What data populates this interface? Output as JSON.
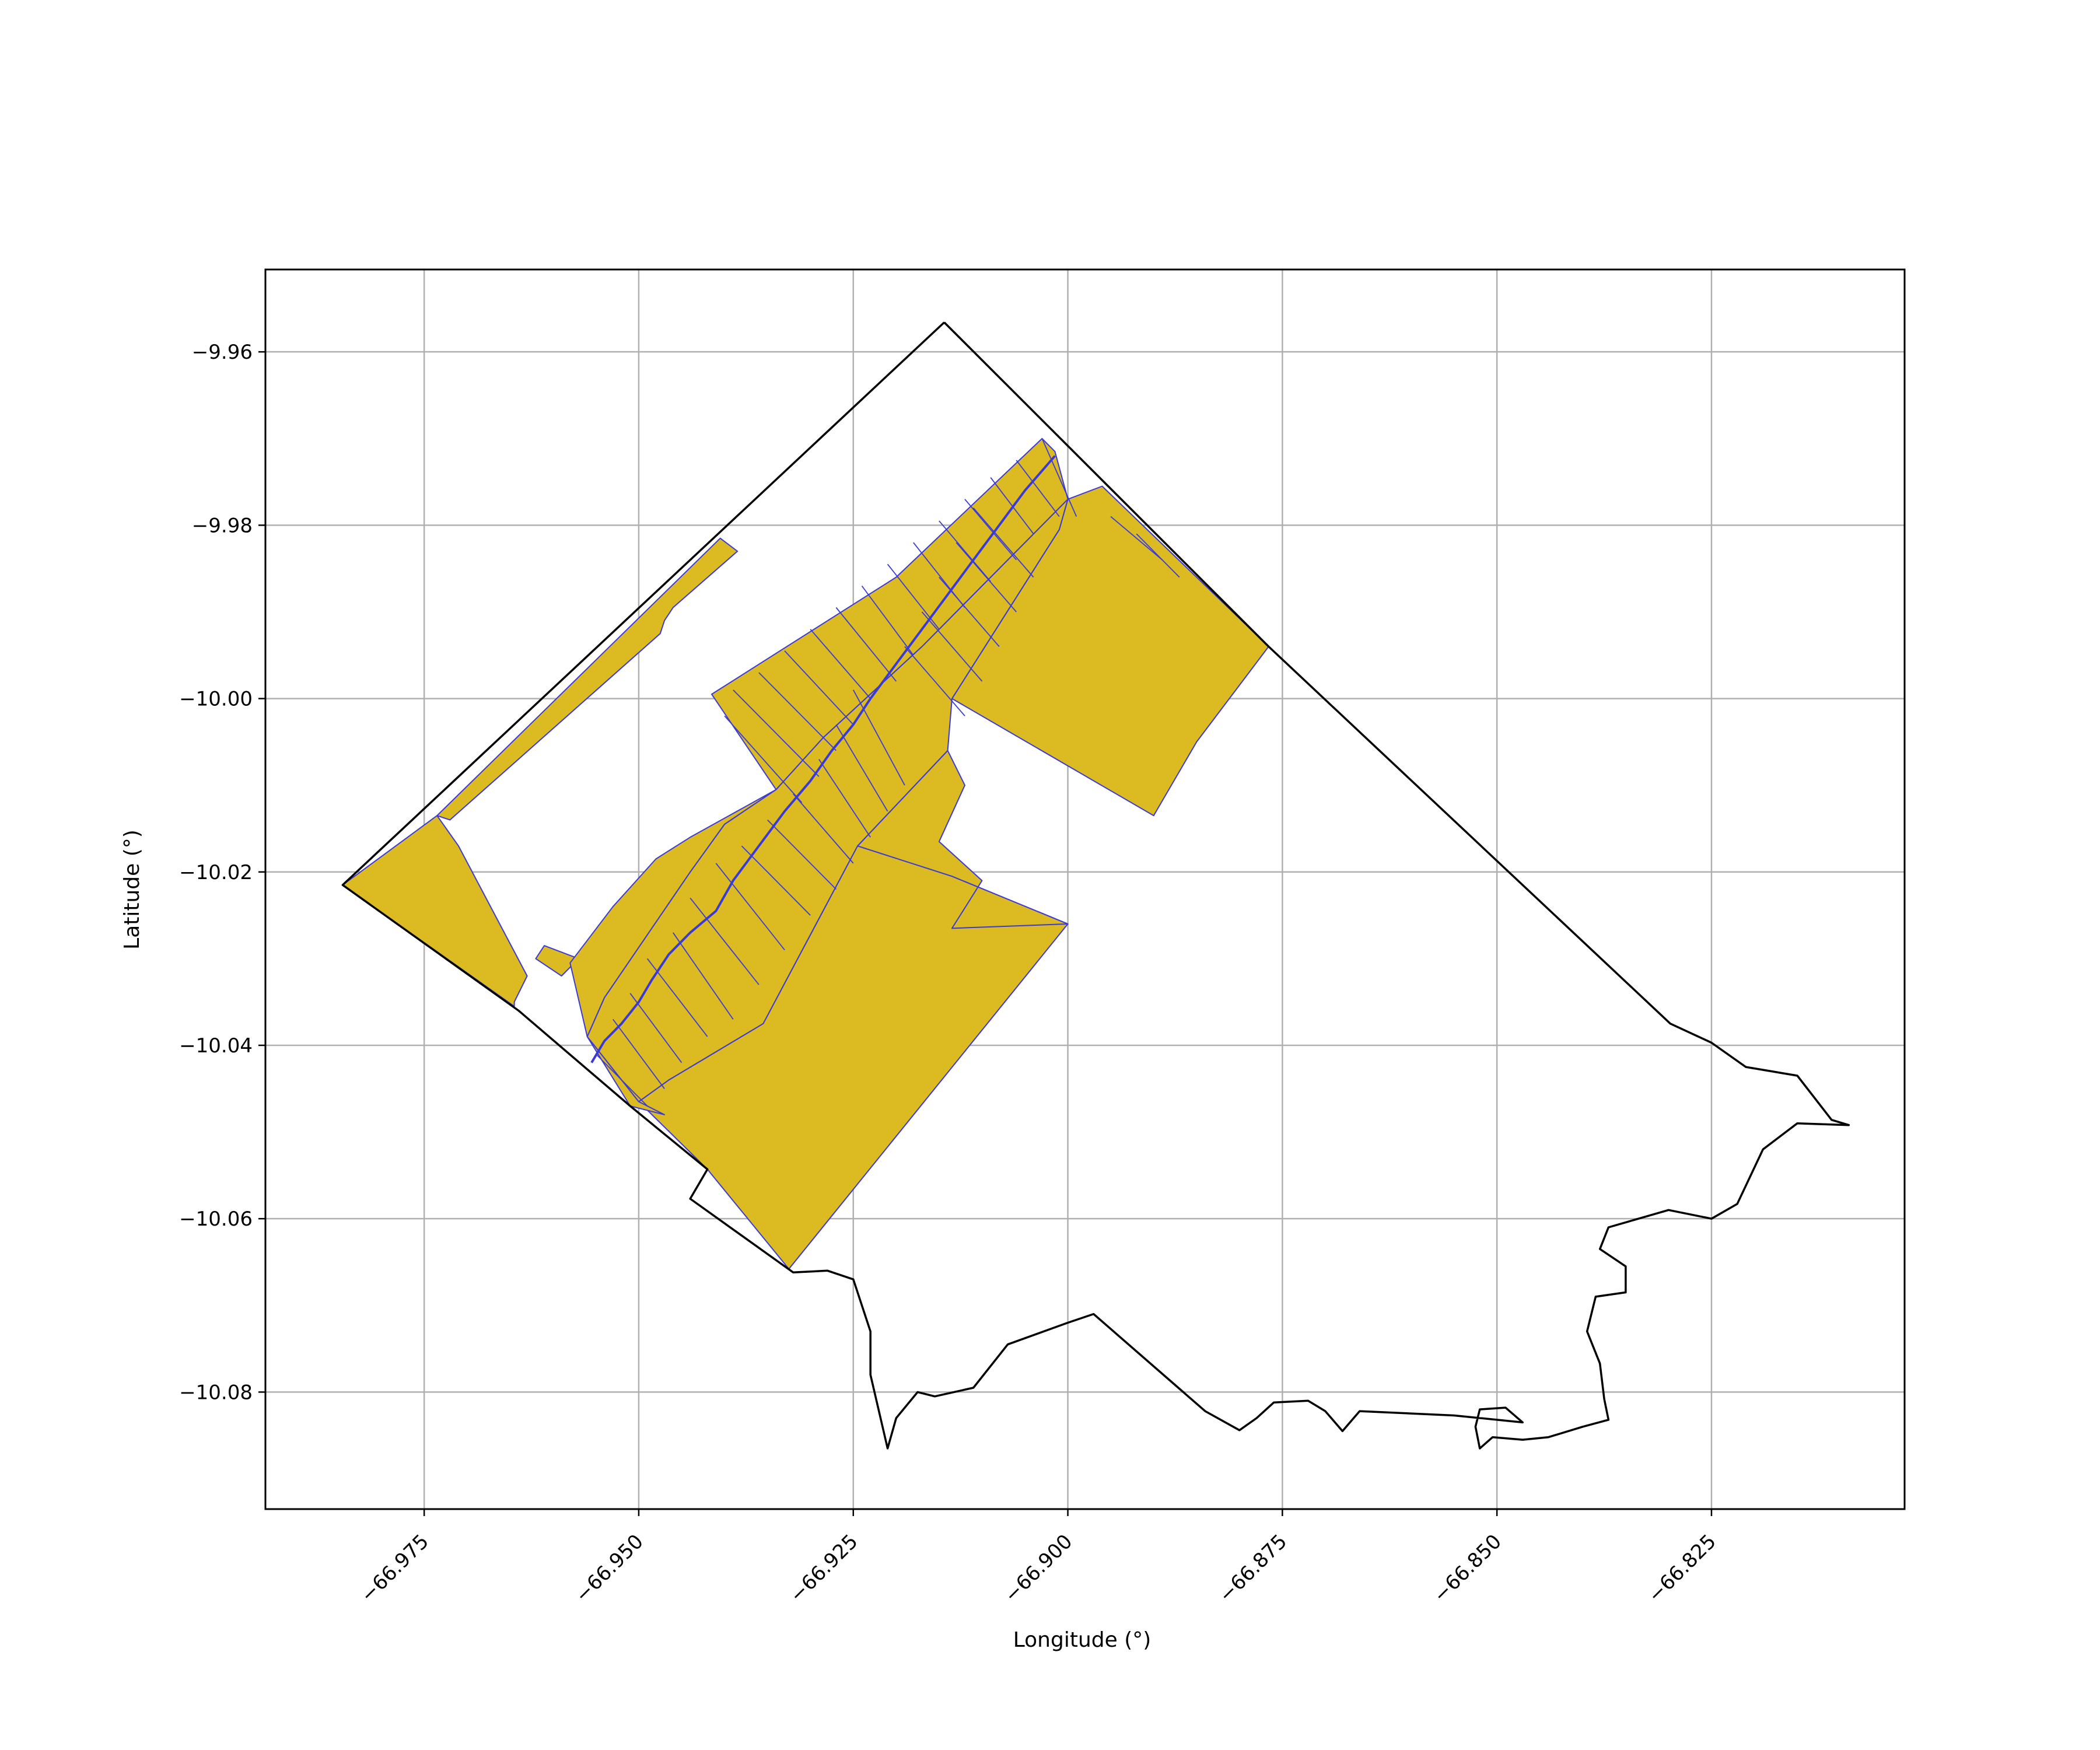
{
  "chart_data": {
    "type": "map",
    "xlabel": "Longitude (°)",
    "ylabel": "Latitude (°)",
    "xlim": [
      -66.9935,
      -66.8025
    ],
    "ylim": [
      -10.0935,
      -9.9505
    ],
    "grid": true,
    "xticks": [
      {
        "value": -66.975,
        "label": "−66.975"
      },
      {
        "value": -66.95,
        "label": "−66.950"
      },
      {
        "value": -66.925,
        "label": "−66.925"
      },
      {
        "value": -66.9,
        "label": "−66.900"
      },
      {
        "value": -66.875,
        "label": "−66.875"
      },
      {
        "value": -66.85,
        "label": "−66.850"
      },
      {
        "value": -66.825,
        "label": "−66.825"
      }
    ],
    "yticks": [
      {
        "value": -9.96,
        "label": "−9.96"
      },
      {
        "value": -9.98,
        "label": "−9.98"
      },
      {
        "value": -10.0,
        "label": "−10.00"
      },
      {
        "value": -10.02,
        "label": "−10.02"
      },
      {
        "value": -10.04,
        "label": "−10.04"
      },
      {
        "value": -10.06,
        "label": "−10.06"
      },
      {
        "value": -10.08,
        "label": "−10.08"
      }
    ],
    "colors": {
      "boundary": "#000000",
      "parcel_fill": "#dbbb21",
      "parcel_edge": "#3a3ad6",
      "grid": "#b0b0b0"
    },
    "boundary": [
      [
        -66.9144,
        -9.9566
      ],
      [
        -66.8766,
        -9.994
      ],
      [
        -66.8298,
        -10.0375
      ],
      [
        -66.825,
        -10.0397
      ],
      [
        -66.821,
        -10.0425
      ],
      [
        -66.815,
        -10.0435
      ],
      [
        -66.811,
        -10.0486
      ],
      [
        -66.809,
        -10.0492
      ],
      [
        -66.815,
        -10.049
      ],
      [
        -66.819,
        -10.052
      ],
      [
        -66.822,
        -10.0583
      ],
      [
        -66.825,
        -10.06
      ],
      [
        -66.83,
        -10.059
      ],
      [
        -66.837,
        -10.061
      ],
      [
        -66.838,
        -10.0635
      ],
      [
        -66.835,
        -10.0655
      ],
      [
        -66.835,
        -10.0685
      ],
      [
        -66.8385,
        -10.069
      ],
      [
        -66.8395,
        -10.073
      ],
      [
        -66.838,
        -10.0767
      ],
      [
        -66.8375,
        -10.0808
      ],
      [
        -66.837,
        -10.0832
      ],
      [
        -66.84,
        -10.084
      ],
      [
        -66.844,
        -10.0852
      ],
      [
        -66.847,
        -10.0855
      ],
      [
        -66.8505,
        -10.0852
      ],
      [
        -66.852,
        -10.0865
      ],
      [
        -66.8525,
        -10.084
      ],
      [
        -66.852,
        -10.082
      ],
      [
        -66.849,
        -10.0818
      ],
      [
        -66.847,
        -10.0835
      ],
      [
        -66.855,
        -10.0827
      ],
      [
        -66.866,
        -10.0822
      ],
      [
        -66.868,
        -10.0845
      ],
      [
        -66.87,
        -10.0822
      ],
      [
        -66.872,
        -10.081
      ],
      [
        -66.876,
        -10.0812
      ],
      [
        -66.878,
        -10.083
      ],
      [
        -66.88,
        -10.0844
      ],
      [
        -66.884,
        -10.0822
      ],
      [
        -66.897,
        -10.071
      ],
      [
        -66.9,
        -10.072
      ],
      [
        -66.907,
        -10.0745
      ],
      [
        -66.911,
        -10.0795
      ],
      [
        -66.9155,
        -10.0805
      ],
      [
        -66.9175,
        -10.08
      ],
      [
        -66.92,
        -10.083
      ],
      [
        -66.921,
        -10.0865
      ],
      [
        -66.923,
        -10.078
      ],
      [
        -66.923,
        -10.073
      ],
      [
        -66.925,
        -10.067
      ],
      [
        -66.928,
        -10.066
      ],
      [
        -66.932,
        -10.0662
      ],
      [
        -66.944,
        -10.0577
      ],
      [
        -66.942,
        -10.0543
      ],
      [
        -66.951,
        -10.047
      ],
      [
        -66.964,
        -10.036
      ],
      [
        -66.9845,
        -10.0215
      ],
      [
        -66.9144,
        -9.9566
      ]
    ],
    "parcels": [
      [
        [
          -66.9845,
          -10.0215
        ],
        [
          -66.9735,
          -10.0135
        ],
        [
          -66.971,
          -10.017
        ],
        [
          -66.963,
          -10.032
        ],
        [
          -66.9645,
          -10.035
        ],
        [
          -66.9645,
          -10.0355
        ]
      ],
      [
        [
          -66.9735,
          -10.0135
        ],
        [
          -66.9405,
          -9.9815
        ],
        [
          -66.9385,
          -9.983
        ],
        [
          -66.946,
          -9.9895
        ],
        [
          -66.947,
          -9.991
        ],
        [
          -66.9475,
          -9.9925
        ],
        [
          -66.972,
          -10.014
        ]
      ],
      [
        [
          -66.962,
          -10.03
        ],
        [
          -66.959,
          -10.032
        ],
        [
          -66.957,
          -10.03
        ],
        [
          -66.961,
          -10.0285
        ]
      ],
      [
        [
          -66.942,
          -10.0543
        ],
        [
          -66.9325,
          -10.0658
        ],
        [
          -66.9,
          -10.026
        ],
        [
          -66.9135,
          -10.0205
        ],
        [
          -66.9245,
          -10.017
        ],
        [
          -66.9355,
          -10.0375
        ],
        [
          -66.9465,
          -10.044
        ],
        [
          -66.95,
          -10.0465
        ]
      ],
      [
        [
          -66.9245,
          -10.017
        ],
        [
          -66.914,
          -10.006
        ],
        [
          -66.912,
          -10.01
        ],
        [
          -66.915,
          -10.0165
        ],
        [
          -66.91,
          -10.021
        ],
        [
          -66.9135,
          -10.0265
        ],
        [
          -66.9,
          -10.026
        ],
        [
          -66.9135,
          -10.0205
        ]
      ],
      [
        [
          -66.896,
          -9.9755
        ],
        [
          -66.8766,
          -9.994
        ],
        [
          -66.885,
          -10.005
        ],
        [
          -66.89,
          -10.0135
        ],
        [
          -66.9135,
          -10.0
        ],
        [
          -66.901,
          -9.9805
        ],
        [
          -66.9,
          -9.977
        ]
      ],
      [
        [
          -66.9,
          -9.977
        ],
        [
          -66.901,
          -9.9805
        ],
        [
          -66.9135,
          -10.0
        ],
        [
          -66.914,
          -10.006
        ],
        [
          -66.9245,
          -10.017
        ],
        [
          -66.9355,
          -10.0375
        ],
        [
          -66.9465,
          -10.044
        ],
        [
          -66.95,
          -10.0465
        ],
        [
          -66.956,
          -10.039
        ],
        [
          -66.954,
          -10.0345
        ],
        [
          -66.944,
          -10.02
        ],
        [
          -66.94,
          -10.0145
        ],
        [
          -66.934,
          -10.0105
        ],
        [
          -66.9285,
          -10.0045
        ],
        [
          -66.917,
          -9.994
        ],
        [
          -66.9,
          -9.977
        ]
      ],
      [
        [
          -66.9015,
          -9.9715
        ],
        [
          -66.9,
          -9.977
        ],
        [
          -66.917,
          -9.994
        ],
        [
          -66.9285,
          -10.0045
        ],
        [
          -66.934,
          -10.0105
        ],
        [
          -66.94,
          -10.0145
        ],
        [
          -66.944,
          -10.02
        ],
        [
          -66.954,
          -10.0345
        ],
        [
          -66.956,
          -10.039
        ],
        [
          -66.95,
          -10.0465
        ],
        [
          -66.947,
          -10.048
        ],
        [
          -66.951,
          -10.047
        ],
        [
          -66.956,
          -10.039
        ],
        [
          -66.958,
          -10.0305
        ],
        [
          -66.953,
          -10.024
        ],
        [
          -66.948,
          -10.0185
        ],
        [
          -66.944,
          -10.016
        ],
        [
          -66.934,
          -10.0105
        ],
        [
          -66.9415,
          -9.9995
        ],
        [
          -66.92,
          -9.986
        ],
        [
          -66.903,
          -9.97
        ]
      ]
    ],
    "strip_lines": [
      [
        [
          -66.903,
          -9.97
        ],
        [
          -66.899,
          -9.979
        ]
      ],
      [
        [
          -66.906,
          -9.9725
        ],
        [
          -66.901,
          -9.979
        ]
      ],
      [
        [
          -66.909,
          -9.9745
        ],
        [
          -66.904,
          -9.981
        ]
      ],
      [
        [
          -66.912,
          -9.977
        ],
        [
          -66.906,
          -9.984
        ]
      ],
      [
        [
          -66.915,
          -9.9795
        ],
        [
          -66.909,
          -9.9865
        ]
      ],
      [
        [
          -66.918,
          -9.982
        ],
        [
          -66.912,
          -9.9895
        ]
      ],
      [
        [
          -66.921,
          -9.9845
        ],
        [
          -66.915,
          -9.992
        ]
      ],
      [
        [
          -66.924,
          -9.987
        ],
        [
          -66.918,
          -9.995
        ]
      ],
      [
        [
          -66.927,
          -9.9895
        ],
        [
          -66.92,
          -9.998
        ]
      ],
      [
        [
          -66.93,
          -9.992
        ],
        [
          -66.923,
          -10.0
        ]
      ],
      [
        [
          -66.933,
          -9.9945
        ],
        [
          -66.925,
          -10.003
        ]
      ],
      [
        [
          -66.936,
          -9.997
        ],
        [
          -66.927,
          -10.006
        ]
      ],
      [
        [
          -66.939,
          -9.999
        ],
        [
          -66.929,
          -10.009
        ]
      ],
      [
        [
          -66.94,
          -10.002
        ],
        [
          -66.931,
          -10.012
        ]
      ],
      [
        [
          -66.925,
          -9.999
        ],
        [
          -66.919,
          -10.01
        ]
      ],
      [
        [
          -66.927,
          -10.003
        ],
        [
          -66.921,
          -10.013
        ]
      ],
      [
        [
          -66.929,
          -10.007
        ],
        [
          -66.923,
          -10.016
        ]
      ],
      [
        [
          -66.932,
          -10.011
        ],
        [
          -66.925,
          -10.019
        ]
      ],
      [
        [
          -66.935,
          -10.014
        ],
        [
          -66.927,
          -10.022
        ]
      ],
      [
        [
          -66.938,
          -10.017
        ],
        [
          -66.93,
          -10.025
        ]
      ],
      [
        [
          -66.941,
          -10.019
        ],
        [
          -66.933,
          -10.029
        ]
      ],
      [
        [
          -66.944,
          -10.023
        ],
        [
          -66.936,
          -10.033
        ]
      ],
      [
        [
          -66.946,
          -10.027
        ],
        [
          -66.939,
          -10.037
        ]
      ],
      [
        [
          -66.949,
          -10.03
        ],
        [
          -66.942,
          -10.039
        ]
      ],
      [
        [
          -66.951,
          -10.034
        ],
        [
          -66.945,
          -10.042
        ]
      ],
      [
        [
          -66.953,
          -10.037
        ],
        [
          -66.947,
          -10.045
        ]
      ],
      [
        [
          -66.955,
          -10.041
        ],
        [
          -66.949,
          -10.047
        ]
      ],
      [
        [
          -66.911,
          -9.978
        ],
        [
          -66.904,
          -9.986
        ]
      ],
      [
        [
          -66.913,
          -9.982
        ],
        [
          -66.906,
          -9.99
        ]
      ],
      [
        [
          -66.915,
          -9.986
        ],
        [
          -66.908,
          -9.994
        ]
      ],
      [
        [
          -66.917,
          -9.99
        ],
        [
          -66.91,
          -9.998
        ]
      ],
      [
        [
          -66.919,
          -9.994
        ],
        [
          -66.912,
          -10.002
        ]
      ],
      [
        [
          -66.892,
          -9.981
        ],
        [
          -66.887,
          -9.986
        ]
      ],
      [
        [
          -66.895,
          -9.979
        ],
        [
          -66.889,
          -9.984
        ]
      ]
    ],
    "road": [
      [
        -66.9015,
        -9.972
      ],
      [
        -66.905,
        -9.976
      ],
      [
        -66.908,
        -9.98
      ],
      [
        -66.911,
        -9.984
      ],
      [
        -66.914,
        -9.988
      ],
      [
        -66.917,
        -9.992
      ],
      [
        -66.92,
        -9.996
      ],
      [
        -66.923,
        -10.0
      ],
      [
        -66.925,
        -10.003
      ],
      [
        -66.9275,
        -10.006
      ],
      [
        -66.93,
        -10.0095
      ],
      [
        -66.933,
        -10.013
      ],
      [
        -66.936,
        -10.017
      ],
      [
        -66.939,
        -10.021
      ],
      [
        -66.941,
        -10.0245
      ],
      [
        -66.944,
        -10.027
      ],
      [
        -66.9465,
        -10.0295
      ],
      [
        -66.9485,
        -10.0325
      ],
      [
        -66.95,
        -10.035
      ],
      [
        -66.952,
        -10.0375
      ],
      [
        -66.954,
        -10.0395
      ],
      [
        -66.9555,
        -10.042
      ]
    ]
  }
}
